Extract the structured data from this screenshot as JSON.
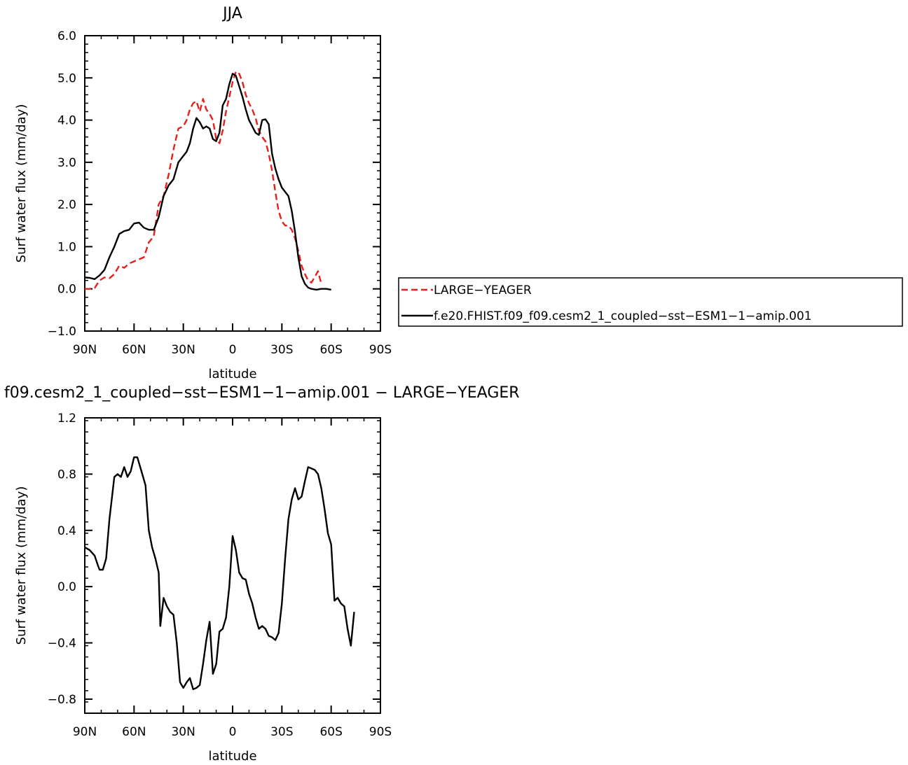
{
  "chart_data": [
    {
      "type": "line",
      "title": "JJA",
      "xlabel": "latitude",
      "ylabel": "Surf water flux (mm/day)",
      "xlim": [
        90,
        -90
      ],
      "ylim": [
        -1.0,
        6.0
      ],
      "x_ticks": [
        {
          "value": 90,
          "label": "90N"
        },
        {
          "value": 60,
          "label": "60N"
        },
        {
          "value": 30,
          "label": "30N"
        },
        {
          "value": 0,
          "label": "0"
        },
        {
          "value": -30,
          "label": "30S"
        },
        {
          "value": -60,
          "label": "60S"
        },
        {
          "value": -90,
          "label": "90S"
        }
      ],
      "y_ticks": [
        {
          "value": -1.0,
          "label": "−1.0"
        },
        {
          "value": 0.0,
          "label": "0.0"
        },
        {
          "value": 1.0,
          "label": "1.0"
        },
        {
          "value": 2.0,
          "label": "2.0"
        },
        {
          "value": 3.0,
          "label": "3.0"
        },
        {
          "value": 4.0,
          "label": "4.0"
        },
        {
          "value": 5.0,
          "label": "5.0"
        },
        {
          "value": 6.0,
          "label": "6.0"
        }
      ],
      "legend_position": "right",
      "series": [
        {
          "name": "LARGE−YEAGER",
          "color": "#e8201b",
          "dash": "dashed",
          "points": [
            [
              90,
              0.0
            ],
            [
              87,
              0.0
            ],
            [
              84,
              0.02
            ],
            [
              81,
              0.2
            ],
            [
              78,
              0.27
            ],
            [
              75,
              0.25
            ],
            [
              72,
              0.35
            ],
            [
              69,
              0.55
            ],
            [
              66,
              0.5
            ],
            [
              63,
              0.6
            ],
            [
              60,
              0.65
            ],
            [
              57,
              0.7
            ],
            [
              54,
              0.75
            ],
            [
              51,
              1.1
            ],
            [
              48,
              1.25
            ],
            [
              45,
              2.0
            ],
            [
              42,
              2.2
            ],
            [
              39,
              2.7
            ],
            [
              36,
              3.3
            ],
            [
              33,
              3.8
            ],
            [
              30,
              3.85
            ],
            [
              28,
              4.0
            ],
            [
              26,
              4.25
            ],
            [
              24,
              4.4
            ],
            [
              22,
              4.45
            ],
            [
              20,
              4.2
            ],
            [
              18,
              4.5
            ],
            [
              16,
              4.25
            ],
            [
              14,
              4.15
            ],
            [
              12,
              4.0
            ],
            [
              10,
              3.55
            ],
            [
              8,
              3.45
            ],
            [
              6,
              3.75
            ],
            [
              4,
              4.2
            ],
            [
              2,
              4.55
            ],
            [
              0,
              4.9
            ],
            [
              -2,
              5.15
            ],
            [
              -4,
              5.1
            ],
            [
              -6,
              4.9
            ],
            [
              -8,
              4.6
            ],
            [
              -10,
              4.4
            ],
            [
              -12,
              4.25
            ],
            [
              -14,
              4.05
            ],
            [
              -16,
              3.75
            ],
            [
              -18,
              3.6
            ],
            [
              -20,
              3.5
            ],
            [
              -22,
              3.2
            ],
            [
              -24,
              2.8
            ],
            [
              -26,
              2.3
            ],
            [
              -28,
              1.85
            ],
            [
              -30,
              1.6
            ],
            [
              -32,
              1.5
            ],
            [
              -34,
              1.5
            ],
            [
              -36,
              1.4
            ],
            [
              -38,
              1.2
            ],
            [
              -40,
              0.9
            ],
            [
              -42,
              0.55
            ],
            [
              -44,
              0.35
            ],
            [
              -46,
              0.2
            ],
            [
              -48,
              0.15
            ],
            [
              -50,
              0.28
            ],
            [
              -52,
              0.42
            ],
            [
              -54,
              0.12
            ]
          ]
        },
        {
          "name": "f.e20.FHIST.f09_f09.cesm2_1_coupled−sst−ESM1−1−amip.001",
          "color": "#000000",
          "dash": "solid",
          "points": [
            [
              90,
              0.27
            ],
            [
              87,
              0.26
            ],
            [
              84,
              0.23
            ],
            [
              81,
              0.32
            ],
            [
              78,
              0.45
            ],
            [
              75,
              0.75
            ],
            [
              72,
              1.0
            ],
            [
              69,
              1.3
            ],
            [
              66,
              1.37
            ],
            [
              63,
              1.4
            ],
            [
              60,
              1.55
            ],
            [
              57,
              1.57
            ],
            [
              54,
              1.45
            ],
            [
              51,
              1.4
            ],
            [
              48,
              1.4
            ],
            [
              45,
              1.7
            ],
            [
              42,
              2.2
            ],
            [
              39,
              2.45
            ],
            [
              36,
              2.6
            ],
            [
              33,
              3.0
            ],
            [
              30,
              3.15
            ],
            [
              28,
              3.25
            ],
            [
              26,
              3.45
            ],
            [
              24,
              3.8
            ],
            [
              22,
              4.05
            ],
            [
              20,
              3.95
            ],
            [
              18,
              3.8
            ],
            [
              16,
              3.85
            ],
            [
              14,
              3.8
            ],
            [
              12,
              3.55
            ],
            [
              10,
              3.5
            ],
            [
              8,
              3.7
            ],
            [
              6,
              4.35
            ],
            [
              4,
              4.5
            ],
            [
              2,
              4.85
            ],
            [
              0,
              5.1
            ],
            [
              -2,
              5.05
            ],
            [
              -4,
              4.8
            ],
            [
              -6,
              4.55
            ],
            [
              -8,
              4.25
            ],
            [
              -10,
              4.0
            ],
            [
              -12,
              3.85
            ],
            [
              -14,
              3.7
            ],
            [
              -16,
              3.65
            ],
            [
              -18,
              4.0
            ],
            [
              -20,
              4.02
            ],
            [
              -22,
              3.9
            ],
            [
              -24,
              3.2
            ],
            [
              -26,
              2.85
            ],
            [
              -28,
              2.6
            ],
            [
              -30,
              2.4
            ],
            [
              -32,
              2.3
            ],
            [
              -34,
              2.2
            ],
            [
              -36,
              1.85
            ],
            [
              -38,
              1.35
            ],
            [
              -40,
              0.75
            ],
            [
              -42,
              0.3
            ],
            [
              -44,
              0.12
            ],
            [
              -46,
              0.03
            ],
            [
              -48,
              0.0
            ],
            [
              -51,
              -0.02
            ],
            [
              -54,
              0.0
            ],
            [
              -57,
              0.0
            ],
            [
              -60,
              -0.02
            ]
          ]
        }
      ]
    },
    {
      "type": "line",
      "title": "f09.cesm2_1_coupled−sst−ESM1−1−amip.001  −  LARGE−YEAGER",
      "xlabel": "latitude",
      "ylabel": "Surf water flux (mm/day)",
      "xlim": [
        90,
        -90
      ],
      "ylim": [
        -0.9,
        1.2
      ],
      "x_ticks": [
        {
          "value": 90,
          "label": "90N"
        },
        {
          "value": 60,
          "label": "60N"
        },
        {
          "value": 30,
          "label": "30N"
        },
        {
          "value": 0,
          "label": "0"
        },
        {
          "value": -30,
          "label": "30S"
        },
        {
          "value": -60,
          "label": "60S"
        },
        {
          "value": -90,
          "label": "90S"
        }
      ],
      "y_ticks": [
        {
          "value": -0.8,
          "label": "−0.8"
        },
        {
          "value": -0.4,
          "label": "−0.4"
        },
        {
          "value": 0.0,
          "label": "0.0"
        },
        {
          "value": 0.4,
          "label": "0.4"
        },
        {
          "value": 0.8,
          "label": "0.8"
        },
        {
          "value": 1.2,
          "label": "1.2"
        }
      ],
      "series": [
        {
          "color": "#000000",
          "dash": "solid",
          "points": [
            [
              90,
              0.28
            ],
            [
              87,
              0.26
            ],
            [
              84,
              0.22
            ],
            [
              82,
              0.15
            ],
            [
              81,
              0.12
            ],
            [
              79,
              0.12
            ],
            [
              77,
              0.2
            ],
            [
              75,
              0.48
            ],
            [
              72,
              0.78
            ],
            [
              70,
              0.8
            ],
            [
              68,
              0.78
            ],
            [
              66,
              0.85
            ],
            [
              64,
              0.78
            ],
            [
              62,
              0.82
            ],
            [
              60,
              0.92
            ],
            [
              58,
              0.92
            ],
            [
              55,
              0.8
            ],
            [
              53,
              0.72
            ],
            [
              51,
              0.4
            ],
            [
              49,
              0.28
            ],
            [
              47,
              0.2
            ],
            [
              45,
              0.1
            ],
            [
              44,
              -0.28
            ],
            [
              42,
              -0.08
            ],
            [
              40,
              -0.14
            ],
            [
              38,
              -0.18
            ],
            [
              36,
              -0.2
            ],
            [
              34,
              -0.4
            ],
            [
              32,
              -0.68
            ],
            [
              30,
              -0.72
            ],
            [
              28,
              -0.68
            ],
            [
              26,
              -0.65
            ],
            [
              24,
              -0.73
            ],
            [
              22,
              -0.72
            ],
            [
              20,
              -0.7
            ],
            [
              18,
              -0.55
            ],
            [
              16,
              -0.38
            ],
            [
              14,
              -0.25
            ],
            [
              12,
              -0.62
            ],
            [
              10,
              -0.55
            ],
            [
              8,
              -0.32
            ],
            [
              6,
              -0.3
            ],
            [
              4,
              -0.22
            ],
            [
              2,
              0.0
            ],
            [
              0,
              0.36
            ],
            [
              -2,
              0.26
            ],
            [
              -4,
              0.1
            ],
            [
              -6,
              0.06
            ],
            [
              -8,
              0.05
            ],
            [
              -10,
              -0.05
            ],
            [
              -12,
              -0.12
            ],
            [
              -14,
              -0.22
            ],
            [
              -16,
              -0.3
            ],
            [
              -18,
              -0.28
            ],
            [
              -20,
              -0.3
            ],
            [
              -22,
              -0.35
            ],
            [
              -24,
              -0.36
            ],
            [
              -26,
              -0.38
            ],
            [
              -28,
              -0.33
            ],
            [
              -30,
              -0.12
            ],
            [
              -32,
              0.2
            ],
            [
              -34,
              0.48
            ],
            [
              -36,
              0.62
            ],
            [
              -38,
              0.7
            ],
            [
              -40,
              0.62
            ],
            [
              -42,
              0.64
            ],
            [
              -44,
              0.75
            ],
            [
              -46,
              0.85
            ],
            [
              -48,
              0.84
            ],
            [
              -50,
              0.83
            ],
            [
              -52,
              0.8
            ],
            [
              -54,
              0.7
            ],
            [
              -56,
              0.55
            ],
            [
              -58,
              0.38
            ],
            [
              -60,
              0.3
            ],
            [
              -62,
              -0.1
            ],
            [
              -64,
              -0.08
            ],
            [
              -66,
              -0.12
            ],
            [
              -68,
              -0.14
            ],
            [
              -70,
              -0.3
            ],
            [
              -72,
              -0.42
            ],
            [
              -74,
              -0.18
            ]
          ]
        }
      ]
    }
  ]
}
